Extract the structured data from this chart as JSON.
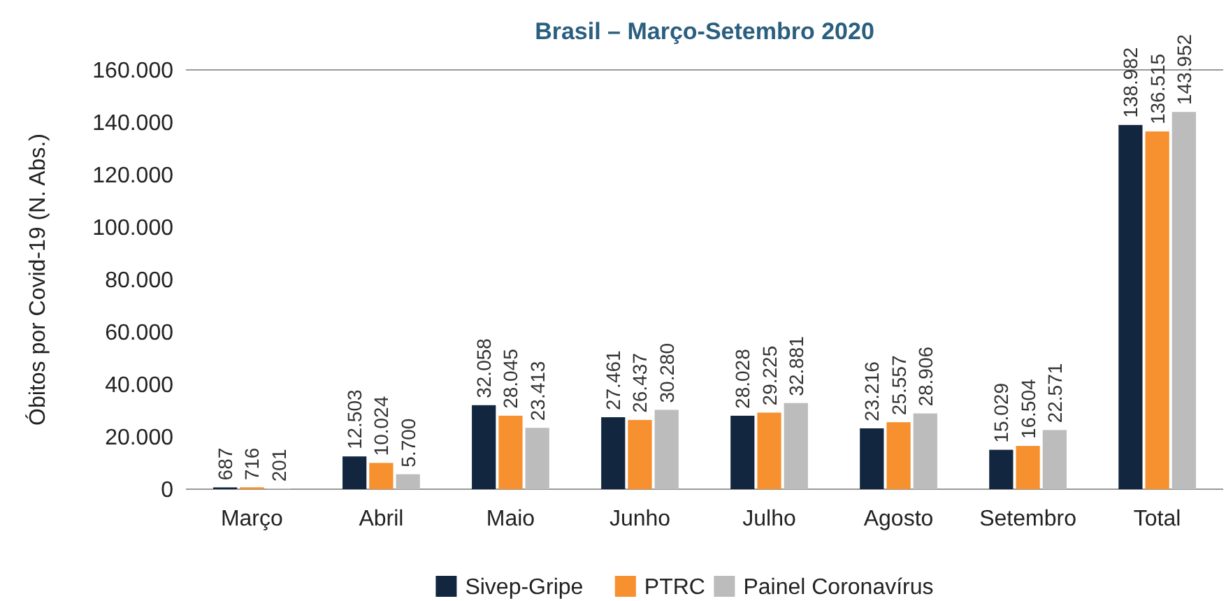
{
  "chart_data": {
    "type": "bar",
    "title": "Brasil – Março-Setembro 2020",
    "ylabel": "Óbitos por Covid-19 (N. Abs.)",
    "categories": [
      "Março",
      "Abril",
      "Maio",
      "Junho",
      "Julho",
      "Agosto",
      "Setembro",
      "Total"
    ],
    "series": [
      {
        "name": "Sivep-Gripe",
        "color": "#12263f",
        "values": [
          687,
          12503,
          32058,
          27461,
          28028,
          23216,
          15029,
          138982
        ],
        "value_labels": [
          "687",
          "12.503",
          "32.058",
          "27.461",
          "28.028",
          "23.216",
          "15.029",
          "138.982"
        ]
      },
      {
        "name": "PTRC",
        "color": "#f7902f",
        "values": [
          716,
          10024,
          28045,
          26437,
          29225,
          25557,
          16504,
          136515
        ],
        "value_labels": [
          "716",
          "10.024",
          "28.045",
          "26.437",
          "29.225",
          "25.557",
          "16.504",
          "136.515"
        ]
      },
      {
        "name": "Painel Coronavírus",
        "color": "#bcbcbc",
        "values": [
          201,
          5700,
          23413,
          30280,
          32881,
          28906,
          22571,
          143952
        ],
        "value_labels": [
          "201",
          "5.700",
          "23.413",
          "30.280",
          "32.881",
          "28.906",
          "22.571",
          "143.952"
        ]
      }
    ],
    "ylim": [
      0,
      160000
    ],
    "yticks": [
      0,
      {
        "value": 20000,
        "label": "20.000"
      },
      {
        "value": 40000,
        "label": "40.000"
      },
      {
        "value": 60000,
        "label": "60.000"
      },
      {
        "value": 80000,
        "label": "80.000"
      },
      {
        "value": 100000,
        "label": "100.000"
      },
      {
        "value": 120000,
        "label": "120.000"
      },
      {
        "value": 140000,
        "label": "140.000"
      },
      {
        "value": 160000,
        "label": "160.000"
      }
    ],
    "grid": false,
    "legend": "bottom"
  }
}
